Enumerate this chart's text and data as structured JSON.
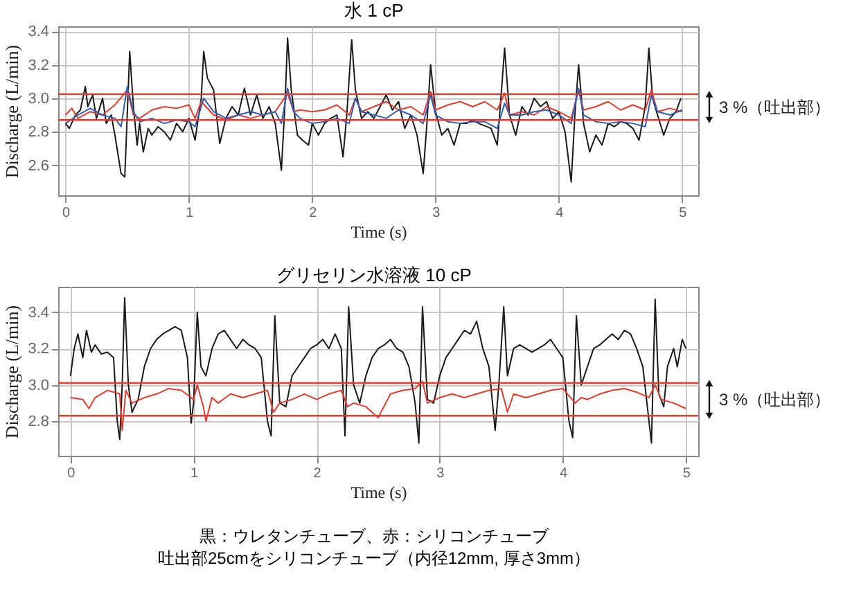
{
  "chart_data": [
    {
      "type": "line",
      "title": "水 1 cP",
      "xlabel": "Time (s)",
      "ylabel": "Discharge (L/min)",
      "xlim": [
        -0.06,
        5.13
      ],
      "ylim": [
        2.42,
        3.43
      ],
      "xticks": [
        0,
        1,
        2,
        3,
        4,
        5
      ],
      "yticks": [
        2.6,
        2.8,
        {
          "value": 3,
          "label": "3.0"
        },
        3.2,
        3.4
      ],
      "grid": true,
      "series": [
        {
          "color": "#1a1a1a",
          "x": [
            0,
            0.03,
            0.08,
            0.12,
            0.16,
            0.18,
            0.22,
            0.25,
            0.3,
            0.33,
            0.37,
            0.4,
            0.45,
            0.48,
            0.5,
            0.52,
            0.55,
            0.58,
            0.6,
            0.63,
            0.67,
            0.7,
            0.75,
            0.8,
            0.85,
            0.9,
            0.95,
            1.0,
            1.05,
            1.1,
            1.12,
            1.15,
            1.2,
            1.25,
            1.3,
            1.35,
            1.4,
            1.45,
            1.5,
            1.55,
            1.6,
            1.65,
            1.7,
            1.75,
            1.78,
            1.8,
            1.83,
            1.88,
            1.92,
            1.97,
            2.0,
            2.05,
            2.1,
            2.15,
            2.2,
            2.25,
            2.28,
            2.32,
            2.35,
            2.4,
            2.45,
            2.5,
            2.55,
            2.6,
            2.65,
            2.7,
            2.75,
            2.8,
            2.85,
            2.9,
            2.93,
            2.96,
            3.0,
            3.05,
            3.1,
            3.15,
            3.2,
            3.25,
            3.3,
            3.35,
            3.45,
            3.5,
            3.53,
            3.56,
            3.6,
            3.65,
            3.7,
            3.75,
            3.8,
            3.85,
            3.9,
            3.95,
            4.0,
            4.05,
            4.1,
            4.13,
            4.16,
            4.2,
            4.25,
            4.3,
            4.35,
            4.4,
            4.45,
            4.5,
            4.55,
            4.6,
            4.65,
            4.7,
            4.73,
            4.76,
            4.8,
            4.85,
            4.9,
            4.95,
            4.99
          ],
          "values": [
            2.85,
            2.82,
            2.9,
            2.93,
            3.07,
            2.95,
            3.02,
            2.88,
            3.0,
            2.85,
            2.9,
            2.78,
            2.55,
            2.53,
            2.9,
            3.28,
            2.95,
            2.72,
            2.85,
            2.68,
            2.82,
            2.78,
            2.83,
            2.8,
            2.75,
            2.85,
            2.8,
            2.88,
            2.75,
            3.0,
            3.28,
            3.12,
            3.05,
            2.73,
            2.88,
            2.95,
            2.9,
            3.06,
            2.9,
            3.02,
            2.88,
            2.95,
            2.85,
            2.57,
            2.98,
            3.36,
            3.05,
            2.78,
            2.75,
            2.72,
            2.85,
            2.78,
            2.85,
            2.88,
            2.9,
            2.65,
            2.9,
            3.35,
            3.05,
            2.88,
            2.92,
            2.88,
            2.95,
            3.02,
            2.93,
            2.98,
            2.82,
            2.9,
            2.78,
            2.55,
            2.85,
            3.2,
            2.92,
            2.78,
            2.82,
            2.72,
            2.85,
            2.85,
            2.87,
            2.85,
            2.82,
            2.72,
            3.0,
            3.3,
            2.9,
            2.78,
            2.95,
            2.9,
            3.0,
            2.95,
            2.98,
            2.88,
            2.92,
            2.8,
            2.5,
            2.9,
            3.2,
            2.85,
            2.68,
            2.78,
            2.72,
            2.85,
            2.83,
            2.86,
            2.85,
            2.82,
            2.75,
            2.95,
            3.3,
            3.0,
            2.9,
            2.78,
            2.88,
            2.92,
            3.0
          ]
        },
        {
          "color": "#e8392a",
          "x": [
            0,
            0.05,
            0.1,
            0.2,
            0.3,
            0.4,
            0.5,
            0.55,
            0.6,
            0.7,
            0.8,
            0.9,
            1.0,
            1.05,
            1.1,
            1.2,
            1.3,
            1.4,
            1.5,
            1.6,
            1.7,
            1.8,
            1.85,
            1.9,
            2.0,
            2.1,
            2.2,
            2.3,
            2.35,
            2.4,
            2.5,
            2.6,
            2.7,
            2.8,
            2.9,
            2.96,
            3.0,
            3.1,
            3.2,
            3.3,
            3.4,
            3.5,
            3.56,
            3.6,
            3.7,
            3.8,
            3.9,
            4.0,
            4.1,
            4.16,
            4.2,
            4.3,
            4.4,
            4.5,
            4.6,
            4.7,
            4.75,
            4.8,
            4.9,
            5.0
          ],
          "values": [
            2.9,
            2.94,
            2.88,
            2.92,
            2.9,
            2.96,
            3.05,
            2.9,
            2.88,
            2.93,
            2.95,
            2.94,
            2.96,
            2.88,
            2.98,
            2.9,
            2.87,
            2.9,
            2.88,
            2.9,
            2.92,
            3.03,
            2.92,
            2.93,
            2.92,
            2.93,
            2.96,
            2.9,
            3.0,
            2.92,
            2.95,
            2.98,
            2.93,
            2.95,
            2.9,
            3.04,
            2.93,
            2.96,
            2.98,
            2.95,
            2.98,
            2.93,
            3.03,
            2.9,
            2.92,
            2.9,
            2.95,
            2.92,
            2.88,
            3.05,
            2.93,
            2.95,
            2.98,
            2.93,
            2.96,
            2.93,
            3.05,
            2.92,
            2.94,
            2.92
          ]
        },
        {
          "color": "#2e5fb8",
          "x": [
            0,
            0.1,
            0.2,
            0.3,
            0.4,
            0.45,
            0.5,
            0.55,
            0.6,
            0.7,
            0.8,
            0.9,
            1.0,
            1.05,
            1.12,
            1.2,
            1.3,
            1.4,
            1.5,
            1.6,
            1.7,
            1.75,
            1.8,
            1.85,
            1.9,
            2.0,
            2.1,
            2.2,
            2.3,
            2.35,
            2.4,
            2.5,
            2.6,
            2.7,
            2.8,
            2.9,
            2.96,
            3.0,
            3.1,
            3.2,
            3.3,
            3.4,
            3.5,
            3.56,
            3.6,
            3.7,
            3.8,
            3.9,
            4.0,
            4.1,
            4.16,
            4.2,
            4.3,
            4.4,
            4.5,
            4.6,
            4.7,
            4.75,
            4.8,
            4.9,
            5.0
          ],
          "values": [
            2.85,
            2.9,
            2.94,
            2.9,
            2.88,
            2.83,
            3.07,
            2.92,
            2.86,
            2.88,
            2.85,
            2.87,
            2.86,
            2.83,
            3.0,
            2.92,
            2.88,
            2.9,
            2.92,
            2.9,
            2.92,
            2.85,
            3.06,
            2.92,
            2.88,
            2.85,
            2.86,
            2.88,
            2.85,
            3.0,
            2.92,
            2.9,
            2.88,
            2.93,
            2.9,
            2.85,
            3.02,
            2.9,
            2.86,
            2.85,
            2.86,
            2.86,
            2.82,
            2.97,
            2.9,
            2.9,
            2.92,
            2.93,
            2.9,
            2.85,
            3.06,
            2.9,
            2.86,
            2.85,
            2.86,
            2.85,
            2.83,
            3.02,
            2.92,
            2.9,
            2.93
          ]
        }
      ],
      "ref_lines": [
        {
          "axis": "y",
          "value": 3.025,
          "color": "#e8392a"
        },
        {
          "axis": "y",
          "value": 2.87,
          "color": "#e8392a"
        }
      ],
      "annotations": [
        "3 %（吐出部）"
      ]
    },
    {
      "type": "line",
      "title": "グリセリン水溶液 10 cP",
      "xlabel": "Time (s)",
      "ylabel": "Discharge (L/min)",
      "xlim": [
        -0.1,
        5.1
      ],
      "ylim": [
        2.61,
        3.54
      ],
      "xticks": [
        0,
        1,
        2,
        3,
        4,
        5
      ],
      "yticks": [
        2.8,
        {
          "value": 3,
          "label": "3.0"
        },
        3.2,
        3.4
      ],
      "grid": true,
      "series": [
        {
          "color": "#1a1a1a",
          "x": [
            0,
            0.03,
            0.06,
            0.1,
            0.13,
            0.17,
            0.2,
            0.25,
            0.3,
            0.35,
            0.38,
            0.4,
            0.42,
            0.44,
            0.47,
            0.5,
            0.55,
            0.6,
            0.65,
            0.7,
            0.75,
            0.8,
            0.85,
            0.9,
            0.95,
            0.98,
            1.0,
            1.03,
            1.06,
            1.1,
            1.15,
            1.2,
            1.25,
            1.3,
            1.35,
            1.4,
            1.45,
            1.5,
            1.55,
            1.6,
            1.63,
            1.66,
            1.7,
            1.75,
            1.8,
            1.85,
            1.9,
            1.95,
            2.0,
            2.05,
            2.1,
            2.15,
            2.2,
            2.23,
            2.26,
            2.3,
            2.35,
            2.4,
            2.45,
            2.5,
            2.55,
            2.6,
            2.65,
            2.7,
            2.75,
            2.8,
            2.83,
            2.86,
            2.9,
            2.95,
            3.0,
            3.05,
            3.1,
            3.15,
            3.2,
            3.25,
            3.3,
            3.35,
            3.4,
            3.45,
            3.48,
            3.52,
            3.55,
            3.6,
            3.65,
            3.7,
            3.75,
            3.8,
            3.85,
            3.9,
            3.95,
            4.0,
            4.05,
            4.08,
            4.11,
            4.15,
            4.2,
            4.25,
            4.3,
            4.35,
            4.4,
            4.45,
            4.5,
            4.55,
            4.6,
            4.65,
            4.7,
            4.72,
            4.75,
            4.78,
            4.82,
            4.85,
            4.9,
            4.93,
            4.97,
            5.0
          ],
          "values": [
            3.05,
            3.2,
            3.28,
            3.15,
            3.3,
            3.18,
            3.22,
            3.17,
            3.18,
            3.15,
            2.8,
            2.7,
            3.0,
            3.48,
            3.0,
            2.85,
            2.92,
            3.1,
            3.2,
            3.25,
            3.28,
            3.3,
            3.32,
            3.3,
            3.15,
            2.79,
            2.9,
            3.4,
            3.1,
            3.05,
            3.2,
            3.28,
            3.3,
            3.25,
            3.2,
            3.25,
            3.22,
            3.2,
            3.15,
            2.8,
            2.72,
            3.38,
            2.9,
            2.88,
            3.05,
            3.1,
            3.15,
            3.2,
            3.22,
            3.25,
            3.2,
            3.28,
            3.2,
            2.72,
            3.43,
            3.0,
            2.9,
            3.05,
            3.15,
            3.2,
            3.22,
            3.25,
            3.2,
            3.18,
            3.1,
            2.9,
            2.68,
            3.43,
            2.92,
            2.9,
            3.05,
            3.15,
            3.2,
            3.25,
            3.3,
            3.28,
            3.35,
            3.2,
            3.1,
            2.75,
            3.0,
            3.43,
            3.05,
            3.2,
            3.22,
            3.2,
            3.18,
            3.2,
            3.22,
            3.25,
            3.2,
            3.15,
            2.8,
            2.71,
            3.38,
            3.0,
            3.1,
            3.2,
            3.22,
            3.25,
            3.28,
            3.25,
            3.3,
            3.28,
            3.2,
            3.1,
            2.8,
            2.68,
            3.47,
            2.95,
            2.88,
            3.1,
            3.2,
            3.1,
            3.25,
            3.2
          ]
        },
        {
          "color": "#e8392a",
          "x": [
            0,
            0.1,
            0.15,
            0.2,
            0.3,
            0.4,
            0.42,
            0.45,
            0.5,
            0.6,
            0.7,
            0.8,
            0.9,
            1.0,
            1.03,
            1.08,
            1.1,
            1.15,
            1.2,
            1.3,
            1.4,
            1.5,
            1.6,
            1.65,
            1.7,
            1.8,
            1.9,
            2.0,
            2.1,
            2.2,
            2.25,
            2.3,
            2.4,
            2.5,
            2.6,
            2.7,
            2.8,
            2.86,
            2.9,
            3.0,
            3.1,
            3.2,
            3.3,
            3.4,
            3.5,
            3.55,
            3.6,
            3.7,
            3.8,
            3.9,
            4.0,
            4.1,
            4.15,
            4.2,
            4.3,
            4.4,
            4.5,
            4.6,
            4.7,
            4.75,
            4.8,
            4.9,
            5.0
          ],
          "values": [
            2.93,
            2.92,
            2.87,
            2.93,
            2.97,
            2.95,
            2.75,
            2.97,
            2.9,
            2.93,
            2.95,
            2.98,
            2.97,
            2.92,
            3.0,
            2.88,
            2.8,
            2.93,
            2.9,
            2.95,
            2.93,
            2.95,
            2.97,
            2.85,
            2.9,
            2.92,
            2.95,
            2.92,
            2.95,
            2.97,
            2.88,
            2.9,
            2.88,
            2.82,
            2.95,
            2.97,
            2.98,
            3.02,
            2.9,
            2.93,
            2.95,
            2.93,
            2.95,
            2.97,
            2.98,
            2.85,
            2.95,
            2.93,
            2.95,
            2.97,
            2.98,
            2.9,
            2.93,
            2.92,
            2.95,
            2.97,
            2.98,
            2.96,
            2.93,
            3.0,
            2.92,
            2.9,
            2.87
          ]
        }
      ],
      "ref_lines": [
        {
          "axis": "y",
          "value": 3.01,
          "color": "#e8392a"
        },
        {
          "axis": "y",
          "value": 2.83,
          "color": "#e8392a"
        }
      ],
      "annotations": [
        "3 %（吐出部）",
        "黒：ウレタンチューブ、赤：シリコンチューブ",
        "吐出部25cmをシリコンチューブ（内径12mm, 厚さ3mm）"
      ]
    }
  ]
}
